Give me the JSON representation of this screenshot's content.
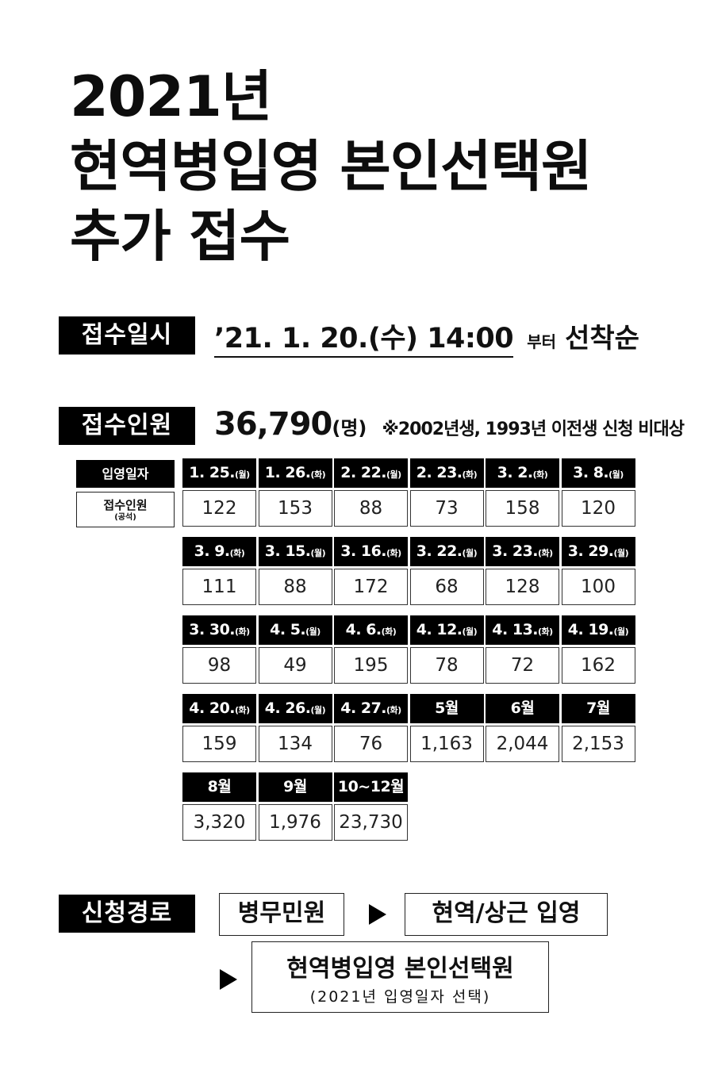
{
  "title": {
    "line1": "2021년",
    "line2": "현역병입영 본인선택원",
    "line3": "추가 접수"
  },
  "reception_time": {
    "label": "접수일시",
    "datetime": "’21. 1. 20.(수) 14:00",
    "from": "부터",
    "order": "선착순"
  },
  "reception_count": {
    "label": "접수인원",
    "total": "36,790",
    "unit": "(명)",
    "note": "※2002년생, 1993년 이전생 신청 비대상"
  },
  "table": {
    "header_label": "입영일자",
    "row_label": "접수인원",
    "row_sublabel": "(공석)",
    "entries": [
      {
        "date": "1. 25.",
        "day": "(월)",
        "count": "122"
      },
      {
        "date": "1. 26.",
        "day": "(화)",
        "count": "153"
      },
      {
        "date": "2. 22.",
        "day": "(월)",
        "count": "88"
      },
      {
        "date": "2. 23.",
        "day": "(화)",
        "count": "73"
      },
      {
        "date": "3. 2.",
        "day": "(화)",
        "count": "158"
      },
      {
        "date": "3. 8.",
        "day": "(월)",
        "count": "120"
      },
      {
        "date": "3. 9.",
        "day": "(화)",
        "count": "111"
      },
      {
        "date": "3. 15.",
        "day": "(월)",
        "count": "88"
      },
      {
        "date": "3. 16.",
        "day": "(화)",
        "count": "172"
      },
      {
        "date": "3. 22.",
        "day": "(월)",
        "count": "68"
      },
      {
        "date": "3. 23.",
        "day": "(화)",
        "count": "128"
      },
      {
        "date": "3. 29.",
        "day": "(월)",
        "count": "100"
      },
      {
        "date": "3. 30.",
        "day": "(화)",
        "count": "98"
      },
      {
        "date": "4. 5.",
        "day": "(월)",
        "count": "49"
      },
      {
        "date": "4. 6.",
        "day": "(화)",
        "count": "195"
      },
      {
        "date": "4. 12.",
        "day": "(월)",
        "count": "78"
      },
      {
        "date": "4. 13.",
        "day": "(화)",
        "count": "72"
      },
      {
        "date": "4. 19.",
        "day": "(월)",
        "count": "162"
      },
      {
        "date": "4. 20.",
        "day": "(화)",
        "count": "159"
      },
      {
        "date": "4. 26.",
        "day": "(월)",
        "count": "134"
      },
      {
        "date": "4. 27.",
        "day": "(화)",
        "count": "76"
      },
      {
        "date": "5월",
        "day": "",
        "count": "1,163"
      },
      {
        "date": "6월",
        "day": "",
        "count": "2,044"
      },
      {
        "date": "7월",
        "day": "",
        "count": "2,153"
      },
      {
        "date": "8월",
        "day": "",
        "count": "3,320"
      },
      {
        "date": "9월",
        "day": "",
        "count": "1,976"
      },
      {
        "date": "10~12월",
        "day": "",
        "count": "23,730"
      }
    ]
  },
  "route": {
    "label": "신청경로",
    "step1": "병무민원",
    "step2": "현역/상근 입영",
    "step3": "현역병입영 본인선택원",
    "step3_sub": "(2021년 입영일자 선택)"
  }
}
